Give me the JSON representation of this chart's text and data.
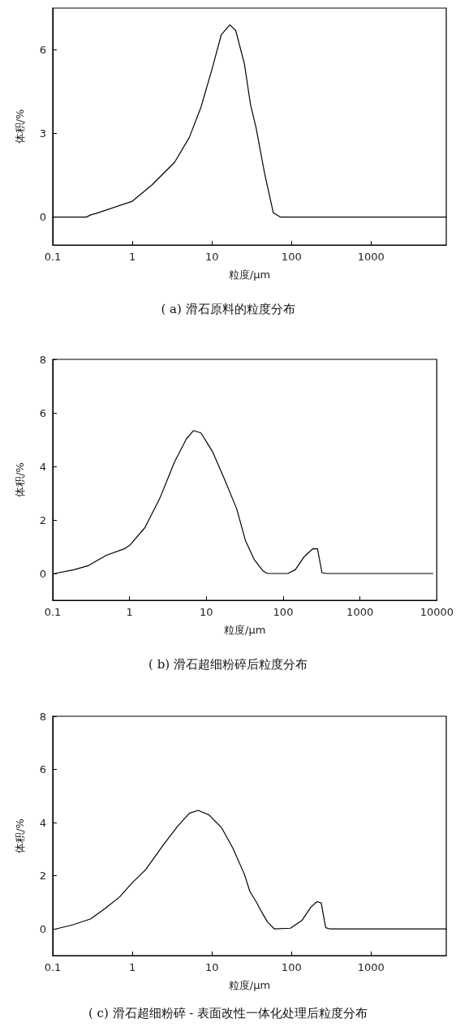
{
  "chart_data": [
    {
      "type": "line",
      "title": "( a) 滑石原料的粒度分布",
      "xlabel": "粒度/μm",
      "ylabel": "体积/%",
      "log": "x",
      "xlim": [
        0.1,
        8800
      ],
      "xticks": [
        0.1,
        1,
        10,
        100,
        1000
      ],
      "ylim": [
        -1,
        7.5
      ],
      "yticks": [
        0,
        3,
        6
      ],
      "color": "#000000",
      "x": [
        0.1,
        0.265,
        0.3,
        0.35,
        1,
        1.74,
        3.4,
        5.2,
        7.3,
        10,
        13.1,
        16.8,
        19.9,
        25.6,
        30.5,
        35.9,
        46,
        59,
        73,
        8800
      ],
      "values": [
        0,
        0,
        0.08,
        0.13,
        0.57,
        1.14,
        1.97,
        2.86,
        3.95,
        5.3,
        6.54,
        6.9,
        6.7,
        5.5,
        4.05,
        3.2,
        1.56,
        0.16,
        0,
        0
      ]
    },
    {
      "type": "line",
      "title": "( b) 滑石超细粉碎后粒度分布",
      "xlabel": "粒度/μm",
      "ylabel": "体积/%",
      "log": "x",
      "xlim": [
        0.1,
        10000
      ],
      "xticks": [
        0.1,
        1,
        10,
        100,
        1000,
        10000
      ],
      "ylim": [
        -1,
        8
      ],
      "yticks": [
        0,
        2,
        4,
        6,
        8
      ],
      "color": "#000000",
      "x": [
        0.106,
        0.189,
        0.294,
        0.5,
        0.85,
        1.02,
        1.59,
        2.47,
        3.84,
        5.5,
        6.8,
        8.5,
        12.1,
        17.3,
        24.8,
        32.3,
        42,
        55,
        62.5,
        115,
        144,
        188,
        245,
        280,
        320,
        367,
        8900
      ],
      "values": [
        0,
        0.14,
        0.3,
        0.68,
        0.92,
        1.07,
        1.72,
        2.8,
        4.16,
        5.03,
        5.34,
        5.25,
        4.54,
        3.51,
        2.42,
        1.23,
        0.52,
        0.09,
        0,
        0,
        0.14,
        0.63,
        0.93,
        0.92,
        0.03,
        0,
        0
      ]
    },
    {
      "type": "line",
      "title": "( c) 滑石超细粉碎 - 表面改性一体化处理后粒度分布",
      "xlabel": "粒度/μm",
      "ylabel": "体积/%",
      "log": "x",
      "xlim": [
        0.1,
        8800
      ],
      "xticks": [
        0.1,
        1,
        10,
        100,
        1000
      ],
      "ylim": [
        -1,
        8
      ],
      "yticks": [
        0,
        2,
        4,
        6,
        8
      ],
      "color": "#000000",
      "x": [
        0.109,
        0.18,
        0.3,
        0.45,
        0.69,
        1,
        1.47,
        2.44,
        3.7,
        5.2,
        6.7,
        9.2,
        13.3,
        18.3,
        25.5,
        30,
        35.9,
        42,
        49.7,
        61,
        97,
        136,
        175,
        209,
        236,
        269,
        305,
        8800
      ],
      "values": [
        0,
        0.16,
        0.38,
        0.76,
        1.2,
        1.74,
        2.23,
        3.15,
        3.86,
        4.35,
        4.46,
        4.29,
        3.8,
        3.04,
        2.07,
        1.41,
        1.03,
        0.65,
        0.27,
        0,
        0.03,
        0.33,
        0.82,
        1.03,
        0.98,
        0.05,
        0,
        0
      ]
    }
  ]
}
